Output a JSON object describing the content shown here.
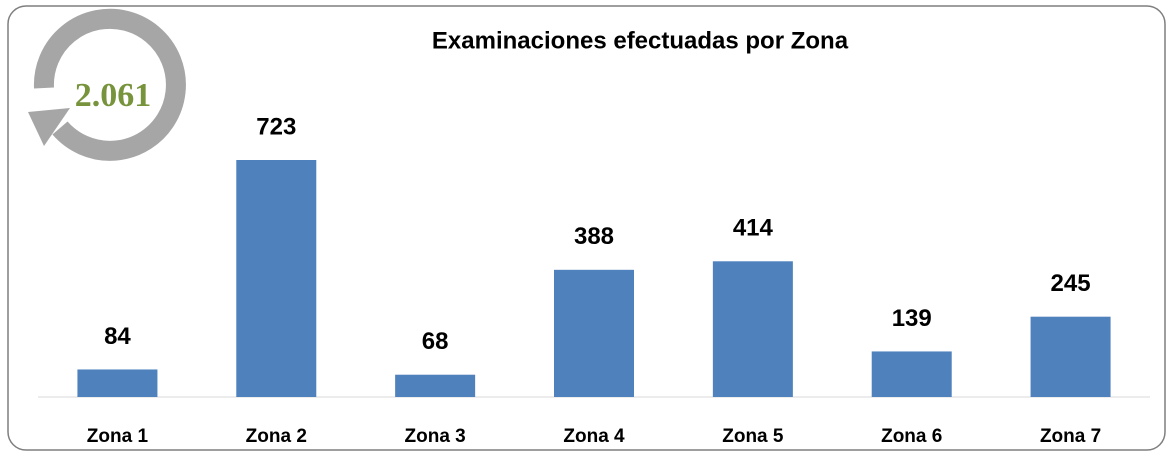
{
  "chart_data": {
    "type": "bar",
    "title": "Examinaciones efectuadas por Zona",
    "total_label": "2.061",
    "categories": [
      "Zona 1",
      "Zona 2",
      "Zona 3",
      "Zona 4",
      "Zona 5",
      "Zona 6",
      "Zona 7"
    ],
    "values": [
      84,
      723,
      68,
      388,
      414,
      139,
      245
    ],
    "color": "#4f81bd"
  }
}
